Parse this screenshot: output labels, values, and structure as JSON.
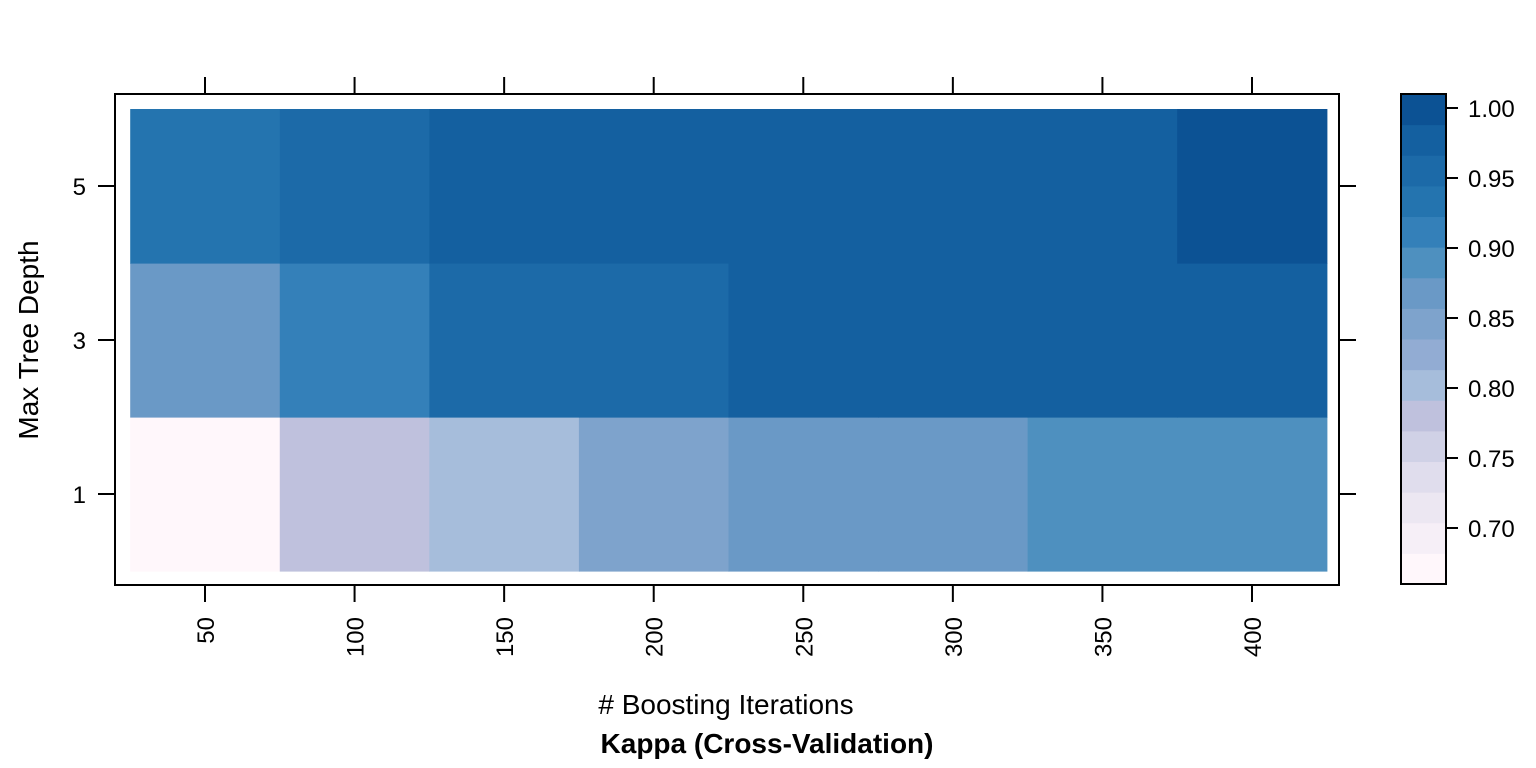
{
  "chart_data": {
    "type": "heatmap",
    "xlabel": "# Boosting Iterations",
    "ylabel": "Max Tree Depth",
    "sublabel": "Kappa (Cross-Validation)",
    "x": [
      50,
      100,
      150,
      200,
      250,
      300,
      350,
      400
    ],
    "x_tick_labels": [
      "50",
      "100",
      "150",
      "200",
      "250",
      "300",
      "350",
      "400"
    ],
    "y": [
      1,
      3,
      5
    ],
    "y_tick_labels": [
      "1",
      "3",
      "5"
    ],
    "values": [
      [
        0.67,
        0.78,
        0.8,
        0.84,
        0.86,
        0.86,
        0.89,
        0.89
      ],
      [
        0.86,
        0.91,
        0.95,
        0.95,
        0.97,
        0.97,
        0.97,
        0.97
      ],
      [
        0.93,
        0.95,
        0.97,
        0.97,
        0.97,
        0.97,
        0.97,
        0.99
      ]
    ],
    "colorkey": {
      "range": [
        0.66,
        1.01
      ],
      "tick_values": [
        0.7,
        0.75,
        0.8,
        0.85,
        0.9,
        0.95,
        1.0
      ],
      "tick_labels": [
        "0.70",
        "0.75",
        "0.80",
        "0.85",
        "0.90",
        "0.95",
        "1.00"
      ],
      "colors": [
        "#fff7fb",
        "#f6eff7",
        "#ece7f2",
        "#e0dded",
        "#d0d1e6",
        "#bfc1dd",
        "#a6bddb",
        "#92acd3",
        "#7ea3cc",
        "#6a99c6",
        "#4e90bf",
        "#3480b9",
        "#2474af",
        "#1c6aa8",
        "#1460a0",
        "#0c5294"
      ]
    }
  }
}
